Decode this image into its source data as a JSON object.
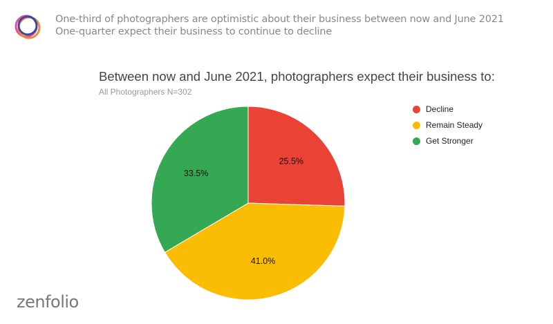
{
  "header": {
    "line1": "One-third of photographers are optimistic about their business between now and June 2021",
    "line2": "One-quarter expect their business to continue to decline"
  },
  "brand": {
    "logo_text": "zenfolio"
  },
  "chart_data": {
    "type": "pie",
    "title": "Between now and June 2021, photographers expect their business to:",
    "subtitle": "All Photographers N=302",
    "legend_position": "right",
    "start_angle": "top",
    "direction": "clockwise",
    "slices": [
      {
        "name": "Decline",
        "value": 25.5,
        "label": "25.5%",
        "color": "#EA4335"
      },
      {
        "name": "Remain Steady",
        "value": 41.0,
        "label": "41.0%",
        "color": "#FBBC04"
      },
      {
        "name": "Get Stronger",
        "value": 33.5,
        "label": "33.5%",
        "color": "#34A853"
      }
    ]
  }
}
